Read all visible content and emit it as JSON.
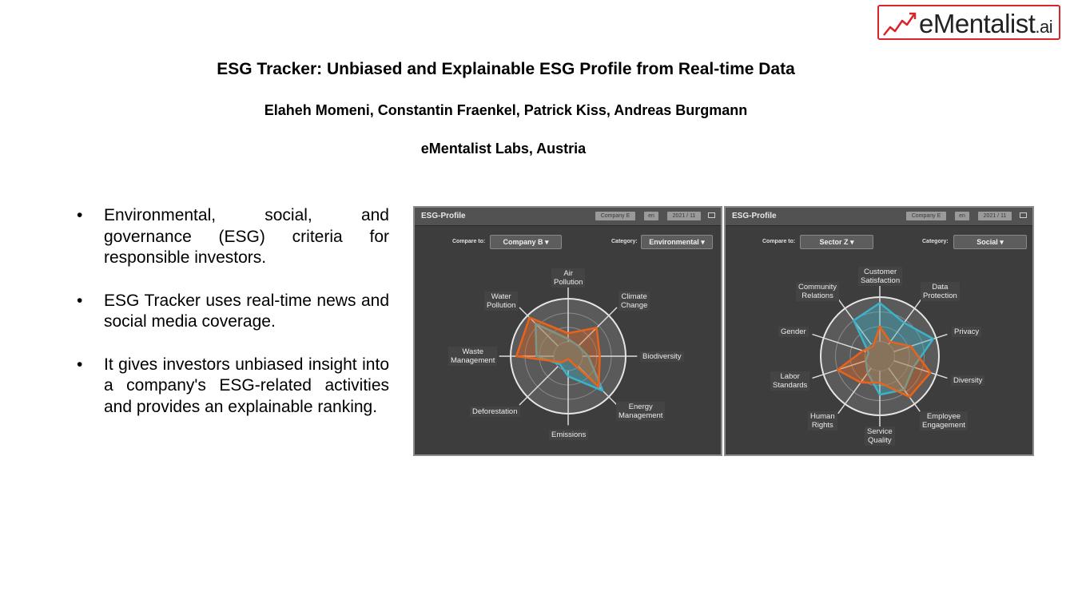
{
  "logo": {
    "text_main": "eMentalist",
    "text_suffix": ".ai",
    "accent": "#d7262b"
  },
  "title": "ESG Tracker: Unbiased and Explainable ESG Profile from Real-time Data",
  "authors": "Elaheh Momeni, Constantin Fraenkel, Patrick Kiss, Andreas Burgmann",
  "affiliation": "eMentalist Labs, Austria",
  "bullets": [
    {
      "marker": "•",
      "text": "Environmental, social, and governance (ESG) criteria for responsible investors."
    },
    {
      "marker": "•",
      "text": "ESG Tracker uses real-time news and social media coverage."
    },
    {
      "marker": "•",
      "text": "It gives investors unbiased insight into a company's ESG-related activities and provides an explainable ranking."
    }
  ],
  "colors": {
    "panel_bg": "#3d3d3d",
    "series_company": "#e8631c",
    "series_compare": "#3ab3c8",
    "grid": "#d9d9d9"
  },
  "panels": [
    {
      "title": "ESG-Profile",
      "chips": [
        "Company E",
        "en",
        "2021 / 11"
      ],
      "compare_label": "Compare to:",
      "compare_value": "Company B",
      "category_label": "Category:",
      "category_value": "Environmental",
      "dropdown_arrow": "▾",
      "axes": [
        "Air\nPollution",
        "Climate\nChange",
        "Biodiversity",
        "Energy\nManagement",
        "Emissions",
        "Deforestation",
        "Waste\nManagement",
        "Water\nPollution"
      ],
      "series_company": [
        0.4,
        0.7,
        0.55,
        0.75,
        0.05,
        0.15,
        0.9,
        0.95
      ],
      "series_compare": [
        0.3,
        0.25,
        0.35,
        0.85,
        0.35,
        0.2,
        0.55,
        0.8
      ]
    },
    {
      "title": "ESG-Profile",
      "chips": [
        "Company E",
        "en",
        "2021 / 11"
      ],
      "compare_label": "Compare to:",
      "compare_value": "Sector Z",
      "category_label": "Category:",
      "category_value": "Social",
      "dropdown_arrow": "▾",
      "axes": [
        "Customer\nSatisfaction",
        "Data\nProtection",
        "Privacy",
        "Diversity",
        "Employee\nEngagement",
        "Service\nQuality",
        "Human\nRights",
        "Labor\nStandards",
        "Gender",
        "Community\nRelations"
      ],
      "series_company": [
        0.5,
        0.3,
        0.55,
        0.9,
        0.85,
        0.45,
        0.55,
        0.75,
        0.3,
        0.2
      ],
      "series_compare": [
        0.9,
        0.7,
        0.95,
        0.6,
        0.7,
        0.65,
        0.35,
        0.25,
        0.2,
        0.75
      ]
    }
  ]
}
